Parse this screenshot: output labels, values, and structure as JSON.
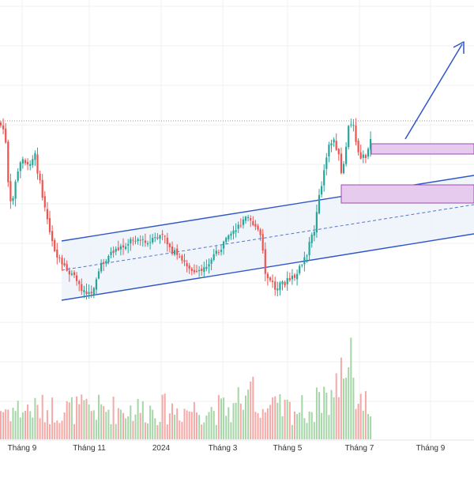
{
  "chart_data": {
    "type": "candlestick",
    "title": "",
    "xlabel": "",
    "ylabel": "",
    "x_tick_labels": [
      "Tháng 9",
      "Tháng 11",
      "2024",
      "Tháng 3",
      "Tháng 5",
      "Tháng 7",
      "Tháng 9"
    ],
    "grid": true,
    "legend": "none",
    "colors": {
      "up": "#26a69a",
      "down": "#ef5350",
      "channel_line": "#2f56c8",
      "channel_fill": "#eef3fb",
      "zone_fill": "#e6cbee",
      "zone_border": "#9b4ea8",
      "last_price_line": "#999999"
    },
    "icons": [
      "arrow-up-icon"
    ],
    "annotations": {
      "channel": "ascending parallel channel with dashed midline",
      "supply_zones": 2,
      "projection_arrow": "up-right"
    }
  }
}
